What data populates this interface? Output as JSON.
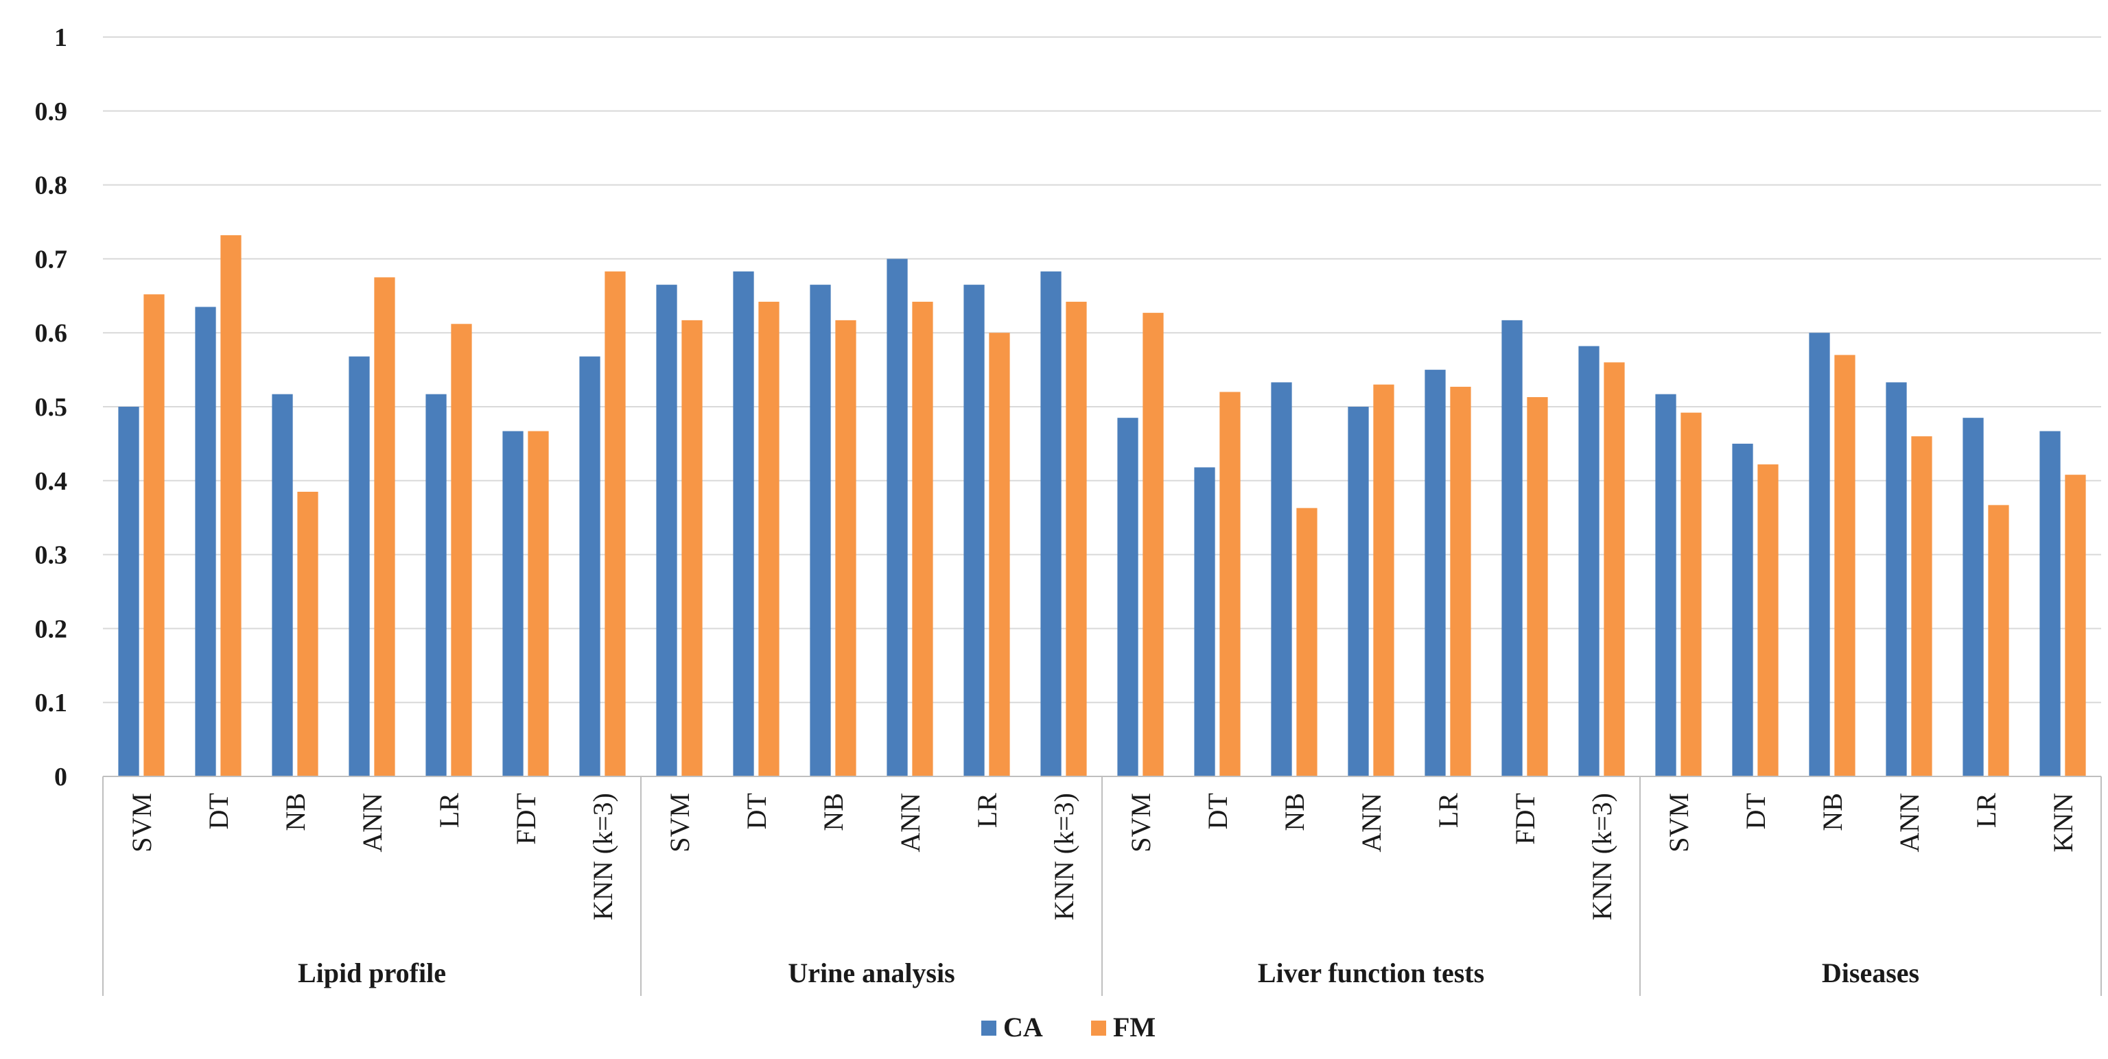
{
  "chart_data": {
    "type": "bar",
    "title": "",
    "xlabel": "",
    "ylabel": "",
    "ylim": [
      0,
      1
    ],
    "yticks": [
      "0",
      "0.1",
      "0.2",
      "0.3",
      "0.4",
      "0.5",
      "0.6",
      "0.7",
      "0.8",
      "0.9",
      "1"
    ],
    "grid": true,
    "legend_position": "bottom-center",
    "series": [
      {
        "name": "CA",
        "color": "#4a7ebb"
      },
      {
        "name": "FM",
        "color": "#f79646"
      }
    ],
    "groups": [
      {
        "name": "Lipid profile",
        "categories": [
          "SVM",
          "DT",
          "NB",
          "ANN",
          "LR",
          "FDT",
          "KNN (k=3)"
        ],
        "CA": [
          0.5,
          0.635,
          0.517,
          0.568,
          0.517,
          0.467,
          0.568
        ],
        "FM": [
          0.652,
          0.732,
          0.385,
          0.675,
          0.612,
          0.467,
          0.683
        ]
      },
      {
        "name": "Urine analysis",
        "categories": [
          "SVM",
          "DT",
          "NB",
          "ANN",
          "LR",
          "KNN (k=3)"
        ],
        "CA": [
          0.665,
          0.683,
          0.665,
          0.7,
          0.665,
          0.683
        ],
        "FM": [
          0.617,
          0.642,
          0.617,
          0.642,
          0.6,
          0.642
        ]
      },
      {
        "name": "Liver function tests",
        "categories": [
          "SVM",
          "DT",
          "NB",
          "ANN",
          "LR",
          "FDT",
          "KNN (k=3)"
        ],
        "CA": [
          0.485,
          0.418,
          0.533,
          0.5,
          0.55,
          0.617,
          0.582
        ],
        "FM": [
          0.627,
          0.52,
          0.363,
          0.53,
          0.527,
          0.513,
          0.56
        ]
      },
      {
        "name": "Diseases",
        "categories": [
          "SVM",
          "DT",
          "NB",
          "ANN",
          "LR",
          "KNN"
        ],
        "CA": [
          0.517,
          0.45,
          0.6,
          0.533,
          0.485,
          0.467
        ],
        "FM": [
          0.492,
          0.422,
          0.57,
          0.46,
          0.367,
          0.408
        ]
      }
    ]
  }
}
